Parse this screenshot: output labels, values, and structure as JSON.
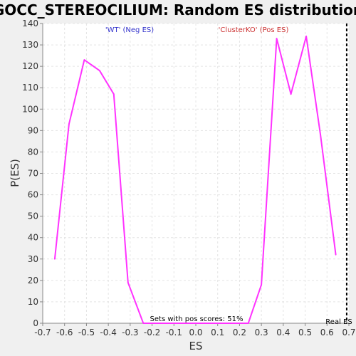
{
  "chart_data": {
    "type": "line",
    "title": "GOCC_STEREOCILIUM: Random ES distribution",
    "xlabel": "ES",
    "ylabel": "P(ES)",
    "xlim": [
      -0.7,
      0.7
    ],
    "ylim": [
      0,
      140
    ],
    "xticks": [
      "-0.7",
      "-0.6",
      "-0.5",
      "-0.4",
      "-0.3",
      "-0.2",
      "-0.1",
      "0.0",
      "0.1",
      "0.2",
      "0.3",
      "0.4",
      "0.5",
      "0.6",
      "0.7"
    ],
    "yticks": [
      "0",
      "10",
      "20",
      "30",
      "40",
      "50",
      "60",
      "70",
      "80",
      "90",
      "100",
      "110",
      "120",
      "130",
      "140"
    ],
    "grid": true,
    "series": [
      {
        "color": "#ff33ff",
        "x": [
          -0.645,
          -0.58,
          -0.51,
          -0.44,
          -0.375,
          -0.31,
          -0.24,
          -0.175,
          -0.11,
          -0.045,
          0.02,
          0.085,
          0.15,
          0.215,
          0.24,
          0.3,
          0.37,
          0.435,
          0.505,
          0.57,
          0.64
        ],
        "y": [
          30,
          93,
          123,
          118,
          107,
          19,
          0,
          0,
          0,
          0,
          0,
          0,
          0,
          0,
          0,
          18,
          133,
          107,
          134,
          88,
          32
        ]
      }
    ],
    "annotations": {
      "neg_label": "'WT' (Neg ES)",
      "neg_color": "#3333cc",
      "pos_label": "'ClusterKO' (Pos ES)",
      "pos_color": "#cc3333",
      "sets_note": "Sets with pos scores: 51%",
      "real_es_label": "Real ES",
      "real_es_value": 0.69
    }
  }
}
